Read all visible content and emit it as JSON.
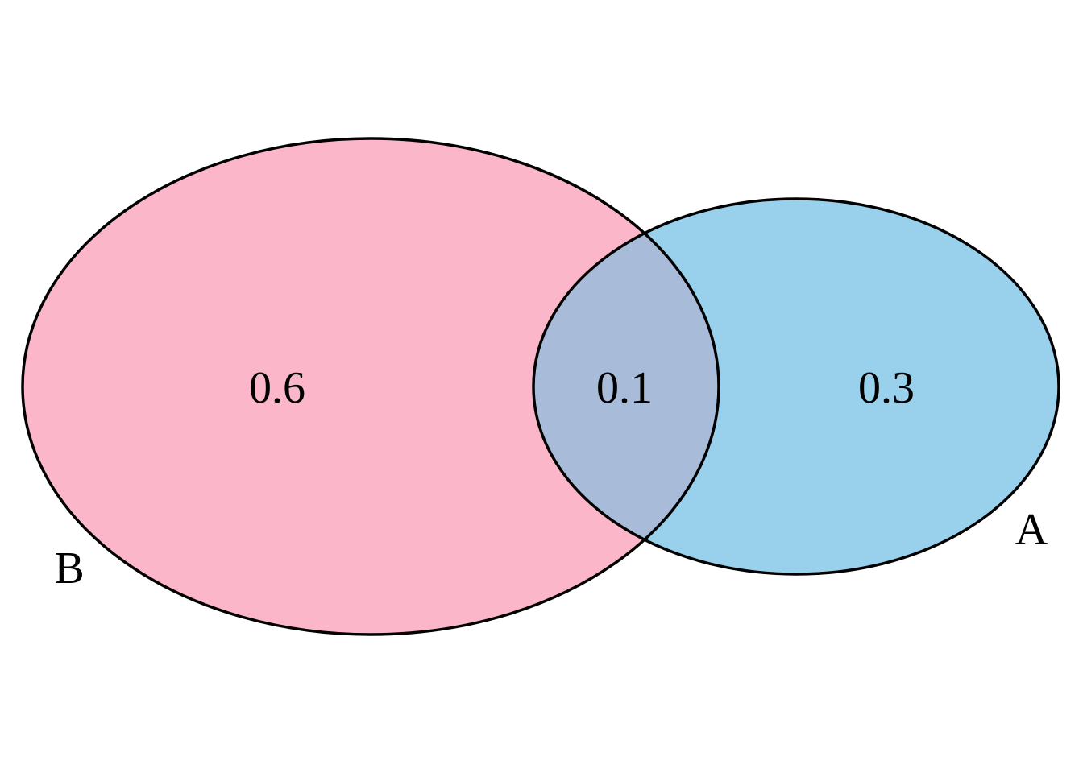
{
  "sets": [
    {
      "id": "B",
      "label": "B",
      "fill": "#fcb6c9",
      "region_value": "0.6"
    },
    {
      "id": "A",
      "label": "A",
      "fill": "#99d1ec",
      "region_value": "0.3"
    }
  ],
  "intersection": {
    "value": "0.1",
    "fill": "#a8bcd9"
  },
  "outline_color": "#000000"
}
